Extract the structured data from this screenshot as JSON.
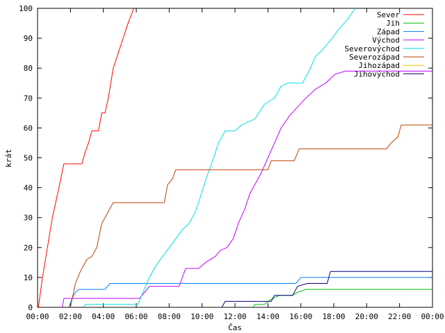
{
  "chart_data": {
    "type": "line",
    "title": "",
    "xlabel": "Čas",
    "ylabel": "krát",
    "xlim": [
      0,
      24
    ],
    "ylim": [
      0,
      100
    ],
    "x_ticks": [
      0,
      2,
      4,
      6,
      8,
      10,
      12,
      14,
      16,
      18,
      20,
      22,
      24
    ],
    "x_tick_labels": [
      "00:00",
      "02:00",
      "04:00",
      "06:00",
      "08:00",
      "10:00",
      "12:00",
      "14:00",
      "16:00",
      "18:00",
      "20:00",
      "22:00",
      "00:00"
    ],
    "y_ticks": [
      0,
      10,
      20,
      30,
      40,
      50,
      60,
      70,
      80,
      90,
      100
    ],
    "y_tick_labels": [
      "0",
      "10",
      "20",
      "30",
      "40",
      "50",
      "60",
      "70",
      "80",
      "90",
      "100"
    ],
    "grid": false,
    "legend_position": "top-right",
    "series": [
      {
        "name": "Sever",
        "color": "#ff0000",
        "points": [
          [
            0.05,
            0
          ],
          [
            0.3,
            10
          ],
          [
            0.6,
            20
          ],
          [
            0.9,
            30
          ],
          [
            1.3,
            40
          ],
          [
            1.6,
            48
          ],
          [
            2.7,
            48
          ],
          [
            2.9,
            52
          ],
          [
            3.1,
            55
          ],
          [
            3.3,
            59
          ],
          [
            3.7,
            59
          ],
          [
            3.9,
            65
          ],
          [
            4.1,
            65
          ],
          [
            4.3,
            70
          ],
          [
            4.6,
            80
          ],
          [
            4.9,
            85
          ],
          [
            5.2,
            90
          ],
          [
            5.5,
            95
          ],
          [
            5.85,
            100
          ]
        ]
      },
      {
        "name": "Jih",
        "color": "#00c000",
        "points": [
          [
            13.1,
            0
          ],
          [
            13.2,
            1
          ],
          [
            13.8,
            1
          ],
          [
            14.0,
            2
          ],
          [
            14.3,
            3
          ],
          [
            14.7,
            4
          ],
          [
            15.5,
            4
          ],
          [
            15.8,
            5
          ],
          [
            16.3,
            6
          ],
          [
            24,
            6
          ]
        ]
      },
      {
        "name": "Západ",
        "color": "#0080ff",
        "points": [
          [
            1.9,
            0
          ],
          [
            2.1,
            3
          ],
          [
            2.3,
            5
          ],
          [
            2.5,
            6
          ],
          [
            4.1,
            6
          ],
          [
            4.4,
            8
          ],
          [
            15.7,
            8
          ],
          [
            16.0,
            10
          ],
          [
            24,
            10
          ]
        ]
      },
      {
        "name": "Východ",
        "color": "#c000ff",
        "points": [
          [
            1.5,
            0
          ],
          [
            1.6,
            3
          ],
          [
            6.2,
            3
          ],
          [
            6.8,
            7
          ],
          [
            8.6,
            7
          ],
          [
            9.0,
            13
          ],
          [
            9.8,
            13
          ],
          [
            10.2,
            15
          ],
          [
            10.8,
            17
          ],
          [
            11.1,
            19
          ],
          [
            11.5,
            20
          ],
          [
            11.9,
            23
          ],
          [
            12.2,
            28
          ],
          [
            12.6,
            33
          ],
          [
            12.9,
            38
          ],
          [
            13.3,
            42
          ],
          [
            13.6,
            45
          ],
          [
            14.0,
            50
          ],
          [
            14.4,
            55
          ],
          [
            14.8,
            60
          ],
          [
            15.3,
            64
          ],
          [
            15.8,
            67
          ],
          [
            16.3,
            70
          ],
          [
            16.9,
            73
          ],
          [
            17.5,
            75
          ],
          [
            18.1,
            78
          ],
          [
            18.7,
            79
          ],
          [
            24,
            79
          ]
        ]
      },
      {
        "name": "Severovýchod",
        "color": "#00e0e0",
        "points": [
          [
            2.8,
            0
          ],
          [
            2.9,
            1
          ],
          [
            6.1,
            1
          ],
          [
            6.4,
            5
          ],
          [
            6.8,
            10
          ],
          [
            7.2,
            14
          ],
          [
            7.6,
            17
          ],
          [
            8.0,
            20
          ],
          [
            8.4,
            23
          ],
          [
            8.8,
            26
          ],
          [
            9.2,
            28
          ],
          [
            9.6,
            32
          ],
          [
            9.9,
            37
          ],
          [
            10.3,
            44
          ],
          [
            10.7,
            50
          ],
          [
            11.0,
            55
          ],
          [
            11.4,
            59
          ],
          [
            12.0,
            59
          ],
          [
            12.4,
            61
          ],
          [
            13.2,
            63
          ],
          [
            13.8,
            68
          ],
          [
            14.4,
            70
          ],
          [
            14.8,
            74
          ],
          [
            15.2,
            75
          ],
          [
            16.1,
            75
          ],
          [
            16.5,
            79
          ],
          [
            16.9,
            84
          ],
          [
            17.3,
            86
          ],
          [
            17.9,
            90
          ],
          [
            18.3,
            93
          ],
          [
            18.8,
            96
          ],
          [
            19.3,
            100
          ]
        ]
      },
      {
        "name": "Severozápad",
        "color": "#c04000",
        "points": [
          [
            2.0,
            0
          ],
          [
            2.3,
            8
          ],
          [
            2.6,
            12
          ],
          [
            3.0,
            16
          ],
          [
            3.3,
            17
          ],
          [
            3.6,
            20
          ],
          [
            3.9,
            28
          ],
          [
            4.1,
            30
          ],
          [
            4.4,
            33
          ],
          [
            4.6,
            35
          ],
          [
            7.7,
            35
          ],
          [
            7.9,
            41
          ],
          [
            8.2,
            43
          ],
          [
            8.4,
            46
          ],
          [
            14.0,
            46
          ],
          [
            14.2,
            49
          ],
          [
            15.6,
            49
          ],
          [
            15.9,
            53
          ],
          [
            21.2,
            53
          ],
          [
            21.5,
            55
          ],
          [
            21.9,
            57
          ],
          [
            22.1,
            61
          ],
          [
            24,
            61
          ]
        ]
      },
      {
        "name": "Jihozápad",
        "color": "#e0c000",
        "points": []
      },
      {
        "name": "Jihovýchod",
        "color": "#000080",
        "points": [
          [
            11.2,
            0
          ],
          [
            11.4,
            2
          ],
          [
            14.2,
            2
          ],
          [
            14.4,
            4
          ],
          [
            15.5,
            4
          ],
          [
            15.8,
            7
          ],
          [
            16.4,
            8
          ],
          [
            17.6,
            8
          ],
          [
            17.8,
            12
          ],
          [
            24,
            12
          ]
        ]
      }
    ]
  }
}
